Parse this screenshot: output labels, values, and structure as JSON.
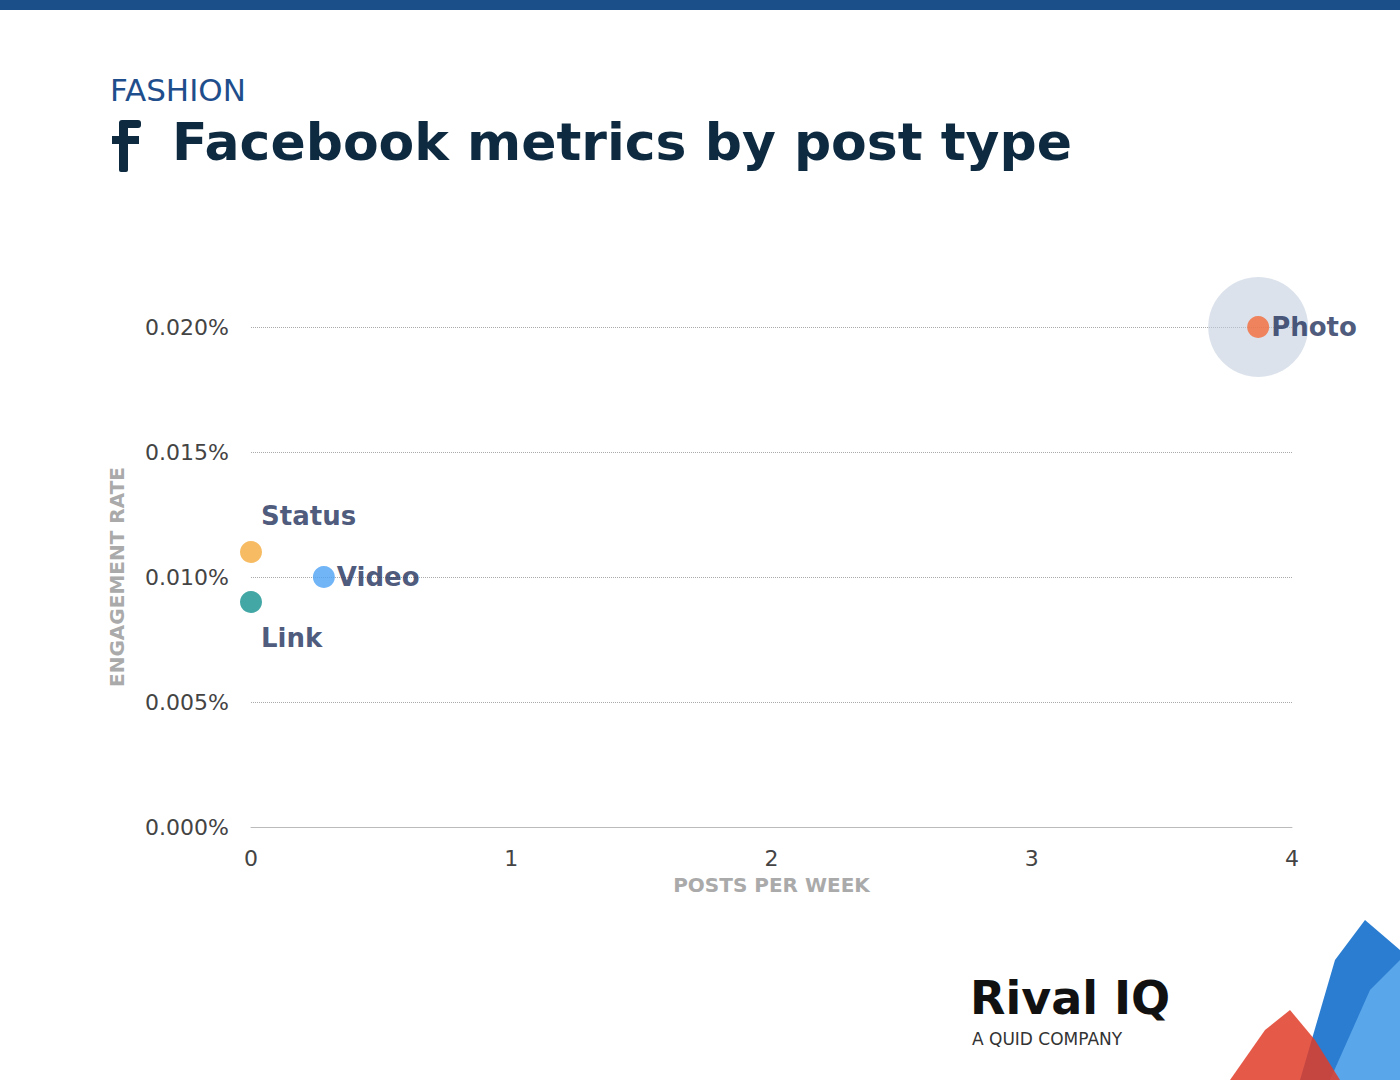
{
  "chart_data": {
    "type": "scatter",
    "subtitle": "FASHION",
    "title": "Facebook metrics by post type",
    "x_label": "POSTS PER WEEK",
    "y_label": "ENGAGEMENT RATE",
    "annotations": [
      "Rival IQ",
      "A QUID COMPANY"
    ],
    "series": [
      {
        "name": "Photo",
        "color": "#f26b3a",
        "x": [
          3.87
        ],
        "values": [
          0.02
        ]
      },
      {
        "name": "Status",
        "color": "#f5ab3c",
        "x": [
          0
        ],
        "values": [
          0.011
        ]
      },
      {
        "name": "Video",
        "color": "#4da3f5",
        "x": [
          0.28
        ],
        "values": [
          0.01
        ]
      },
      {
        "name": "Link",
        "color": "#14918e",
        "x": [
          0
        ],
        "values": [
          0.009
        ]
      }
    ],
    "xlim": [
      0,
      4
    ],
    "xticks": [
      0,
      1,
      2,
      3,
      4
    ],
    "ylim": [
      0,
      0.02
    ],
    "yticks": [
      {
        "value": 0,
        "label": "0.000%"
      },
      {
        "value": 0.005,
        "label": "0.005%"
      },
      {
        "value": 0.01,
        "label": "0.010%"
      },
      {
        "value": 0.015,
        "label": "0.015%"
      },
      {
        "value": 0.02,
        "label": "0.020%"
      }
    ],
    "grid": true,
    "data_labels": false
  }
}
